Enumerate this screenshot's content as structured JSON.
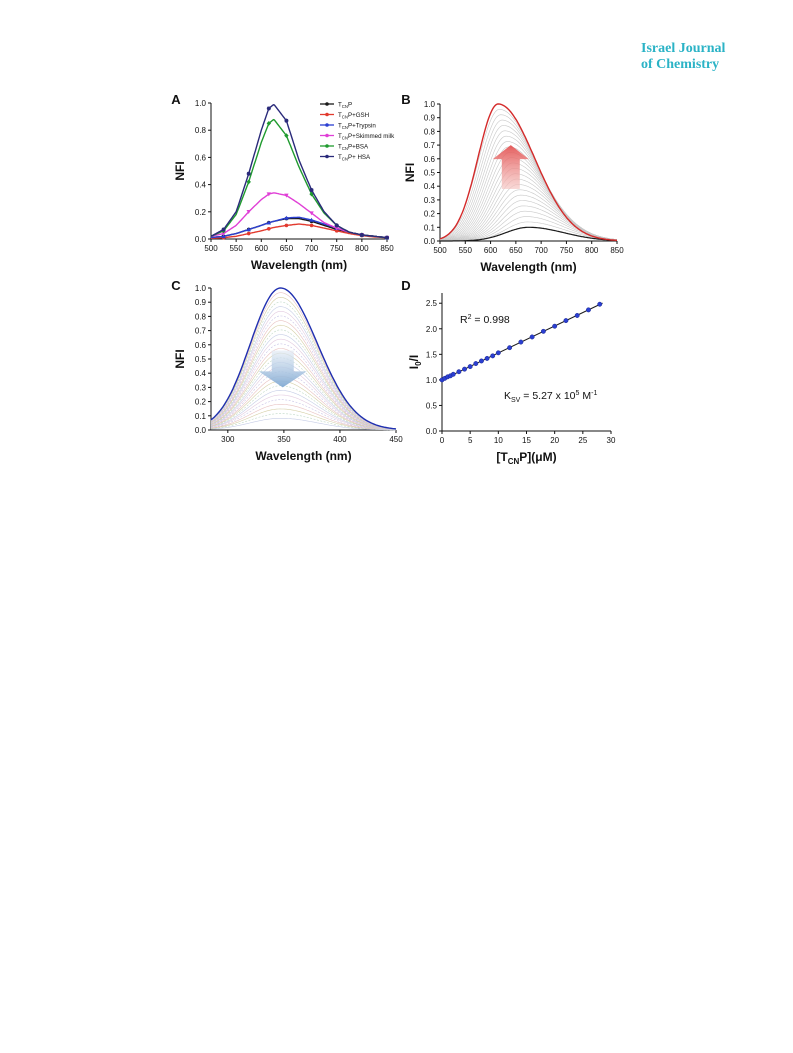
{
  "journal": {
    "line1": "Israel Journal",
    "line2": "of Chemistry"
  },
  "chart_data": [
    {
      "panel": "A",
      "type": "line",
      "xlabel": "Wavelength (nm)",
      "ylabel": "NFI",
      "xlim": [
        500,
        850
      ],
      "ylim": [
        0,
        1.0
      ],
      "xticks": [
        500,
        550,
        600,
        650,
        700,
        750,
        800,
        850
      ],
      "yticks": [
        0.0,
        0.2,
        0.4,
        0.6,
        0.8,
        1.0
      ],
      "legend_position": "top-right",
      "x": [
        500,
        525,
        550,
        575,
        600,
        615,
        625,
        650,
        675,
        700,
        725,
        750,
        775,
        800,
        825,
        850
      ],
      "series": [
        {
          "name": "TCNP",
          "legend": {
            "main": "T",
            "sub": "CN",
            "rest": "P"
          },
          "color": "#1a1a1a",
          "marker": "circle",
          "values": [
            0.01,
            0.02,
            0.04,
            0.07,
            0.1,
            0.12,
            0.13,
            0.15,
            0.15,
            0.13,
            0.1,
            0.07,
            0.05,
            0.03,
            0.02,
            0.01
          ]
        },
        {
          "name": "TCNP+GSH",
          "legend": {
            "main": "T",
            "sub": "CN",
            "rest": "P+GSH"
          },
          "color": "#e23a2e",
          "marker": "circle",
          "values": [
            0.005,
            0.01,
            0.02,
            0.04,
            0.06,
            0.075,
            0.085,
            0.1,
            0.11,
            0.1,
            0.08,
            0.06,
            0.04,
            0.025,
            0.015,
            0.01
          ]
        },
        {
          "name": "TCNP+Trypsin",
          "legend": {
            "main": "T",
            "sub": "CN",
            "rest": "P+Trypsin"
          },
          "color": "#2b3fd1",
          "marker": "triangle-up",
          "values": [
            0.01,
            0.02,
            0.04,
            0.07,
            0.1,
            0.12,
            0.13,
            0.155,
            0.16,
            0.14,
            0.11,
            0.08,
            0.05,
            0.03,
            0.02,
            0.01
          ]
        },
        {
          "name": "TCNP+Skimmed milk",
          "legend": {
            "main": "T",
            "sub": "CN",
            "rest": "P+Skimmed milk"
          },
          "color": "#e03fd6",
          "marker": "triangle-down",
          "values": [
            0.02,
            0.04,
            0.1,
            0.2,
            0.29,
            0.33,
            0.34,
            0.32,
            0.26,
            0.19,
            0.12,
            0.08,
            0.05,
            0.03,
            0.02,
            0.01
          ]
        },
        {
          "name": "TCNP+BSA",
          "legend": {
            "main": "T",
            "sub": "CN",
            "rest": "P+BSA"
          },
          "color": "#1f9a2e",
          "marker": "diamond",
          "values": [
            0.02,
            0.06,
            0.18,
            0.42,
            0.71,
            0.85,
            0.88,
            0.76,
            0.53,
            0.33,
            0.19,
            0.1,
            0.05,
            0.03,
            0.02,
            0.01
          ]
        },
        {
          "name": "TCNP+ HSA",
          "legend": {
            "main": "T",
            "sub": "CN",
            "rest": "P+ HSA"
          },
          "color": "#2a2a7a",
          "marker": "star",
          "values": [
            0.02,
            0.07,
            0.2,
            0.48,
            0.8,
            0.96,
            0.99,
            0.87,
            0.58,
            0.36,
            0.2,
            0.1,
            0.05,
            0.03,
            0.02,
            0.01
          ]
        }
      ]
    },
    {
      "panel": "B",
      "type": "line",
      "xlabel": "Wavelength (nm)",
      "ylabel": "NFI",
      "xlim": [
        500,
        850
      ],
      "ylim": [
        0,
        1.0
      ],
      "xticks": [
        500,
        550,
        600,
        650,
        700,
        750,
        800,
        850
      ],
      "yticks": [
        0.0,
        0.1,
        0.2,
        0.3,
        0.4,
        0.5,
        0.6,
        0.7,
        0.8,
        0.9,
        1.0
      ],
      "arrow_direction": "up",
      "series": [
        {
          "role": "final",
          "color": "#d42a2a",
          "peak_x": 615,
          "peak_y": 1.0
        },
        {
          "role": "initial",
          "color": "#1a1a1a",
          "peak_x": 675,
          "peak_y": 0.1
        },
        {
          "role": "intermediate",
          "color": "#c8c8c8",
          "count": 22
        }
      ]
    },
    {
      "panel": "C",
      "type": "line",
      "xlabel": "Wavelength (nm)",
      "ylabel": "NFI",
      "xlim": [
        285,
        450
      ],
      "ylim": [
        0,
        1.0
      ],
      "xticks": [
        300,
        350,
        400,
        450
      ],
      "yticks": [
        0.0,
        0.1,
        0.2,
        0.3,
        0.4,
        0.5,
        0.6,
        0.7,
        0.8,
        0.9,
        1.0
      ],
      "arrow_direction": "down",
      "series": [
        {
          "role": "initial",
          "color": "#1f2fb0",
          "peak_x": 347,
          "peak_y": 1.0
        },
        {
          "role": "intermediate",
          "color": "#c9c3e6",
          "count": 28
        }
      ]
    },
    {
      "panel": "D",
      "type": "scatter",
      "xlabel": {
        "main": "[T",
        "sub": "CN",
        "rest": "P](μM)"
      },
      "ylabel": {
        "main": "I",
        "sub": "0",
        "rest": "/I"
      },
      "xlim": [
        0,
        30
      ],
      "ylim": [
        0,
        2.7
      ],
      "xticks": [
        0,
        5,
        10,
        15,
        20,
        25,
        30
      ],
      "yticks": [
        0.0,
        0.5,
        1.0,
        1.5,
        2.0,
        2.5
      ],
      "r2_text": {
        "main": "R",
        "sup": "2",
        "rest": " = 0.998"
      },
      "ksv_text": {
        "main": "K",
        "sub": "SV",
        "mid": " = 5.27 x 10",
        "sup1": "5",
        "unit": " M",
        "sup2": "-1"
      },
      "fit": {
        "slope": 0.0527,
        "intercept": 1.0,
        "color": "#1a1a1a"
      },
      "points": {
        "color": "#2b3fd1",
        "x": [
          0,
          0.5,
          1,
          1.5,
          2,
          3,
          4,
          5,
          6,
          7,
          8,
          9,
          10,
          12,
          14,
          16,
          18,
          20,
          22,
          24,
          26,
          28
        ],
        "y": [
          1.0,
          1.03,
          1.06,
          1.08,
          1.11,
          1.16,
          1.21,
          1.26,
          1.32,
          1.37,
          1.42,
          1.47,
          1.53,
          1.63,
          1.74,
          1.84,
          1.95,
          2.05,
          2.16,
          2.26,
          2.37,
          2.48
        ]
      }
    }
  ]
}
